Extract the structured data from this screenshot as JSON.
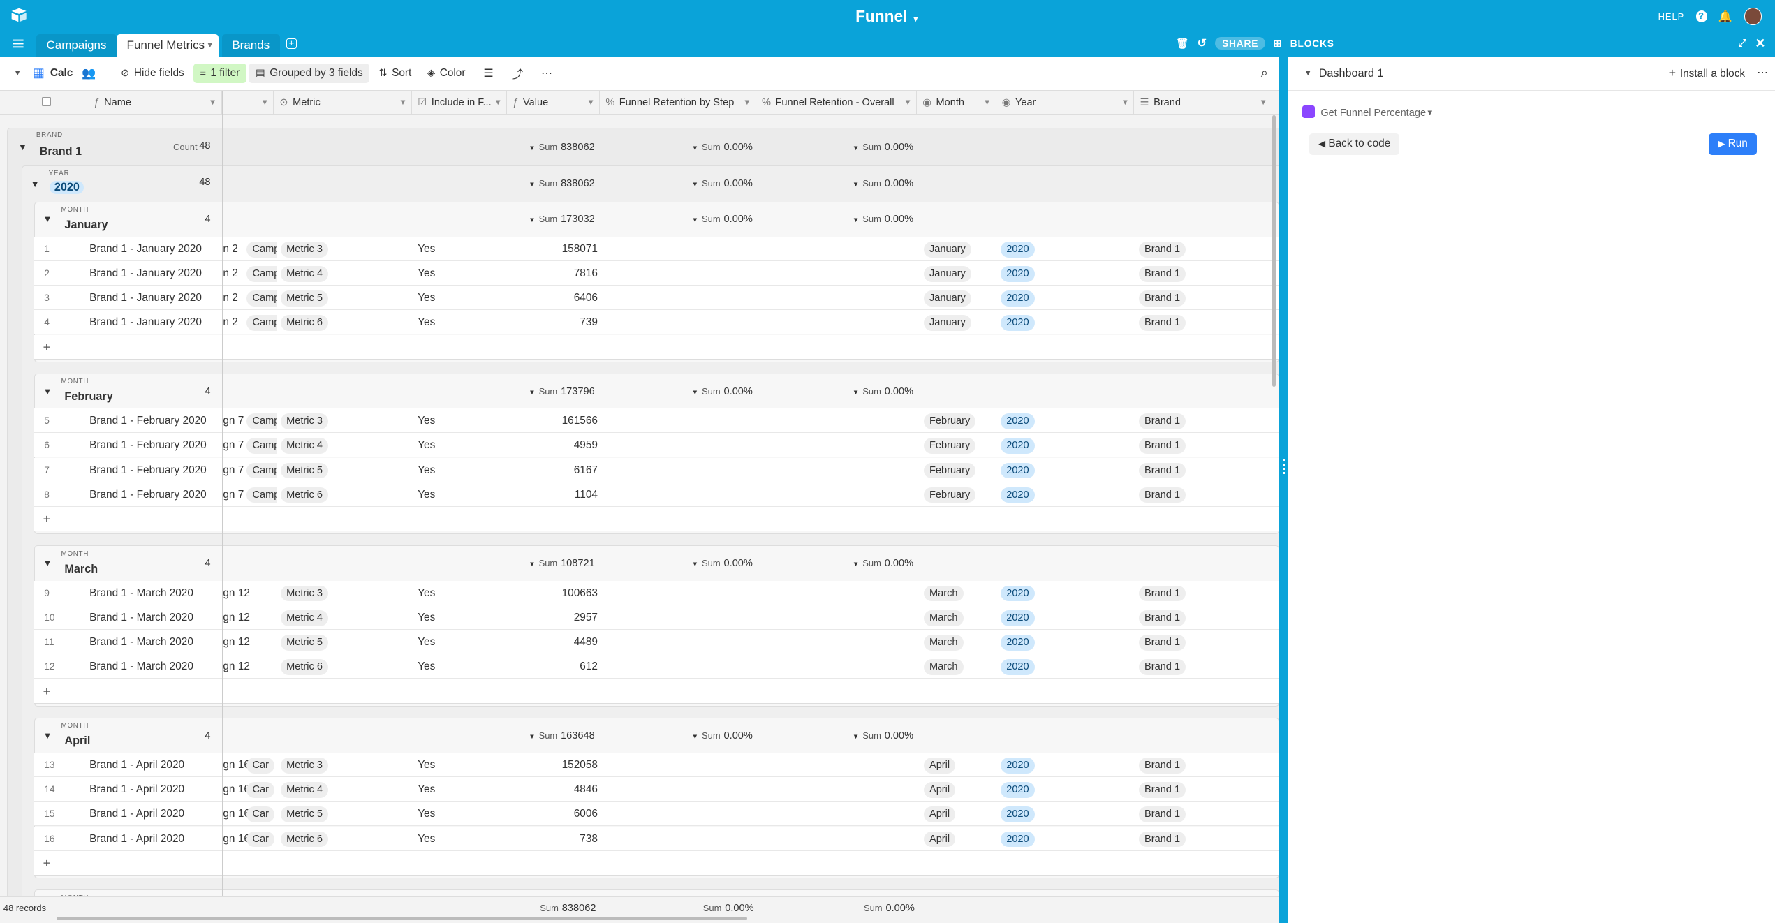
{
  "base_title": "Funnel",
  "top_right": {
    "help": "HELP"
  },
  "tabs": [
    {
      "label": "Campaigns"
    },
    {
      "label": "Funnel Metrics"
    },
    {
      "label": "Brands"
    }
  ],
  "tabbar_right": {
    "share": "SHARE",
    "blocks": "BLOCKS"
  },
  "viewbar": {
    "view_name": "Calc",
    "hide_fields": "Hide fields",
    "filter": "1 filter",
    "grouped": "Grouped by 3 fields",
    "sort": "Sort",
    "color": "Color"
  },
  "columns": [
    "Name",
    "Metric",
    "Include in F...",
    "Value",
    "Funnel Retention by Step",
    "Funnel Retention - Overall",
    "Month",
    "Year",
    "Brand"
  ],
  "group_brand": {
    "label": "BRAND",
    "value": "Brand 1",
    "count_label": "Count",
    "count": "48",
    "sum_value": "838062",
    "sum_step": "0.00%",
    "sum_overall": "0.00%"
  },
  "group_year": {
    "label": "YEAR",
    "value": "2020",
    "count": "48",
    "sum_value": "838062",
    "sum_step": "0.00%",
    "sum_overall": "0.00%"
  },
  "sum_label": "Sum",
  "month_label": "MONTH",
  "months": [
    {
      "name": "January",
      "count": "4",
      "sum_value": "173032",
      "sum_step": "0.00%",
      "sum_overall": "0.00%",
      "rows": [
        {
          "n": "1",
          "name": "Brand 1 - January 2020",
          "camp": "n 2",
          "camp2": "Campa",
          "metric": "Metric 3",
          "inc": "Yes",
          "value": "158071",
          "month": "January",
          "year": "2020",
          "brand": "Brand 1"
        },
        {
          "n": "2",
          "name": "Brand 1 - January 2020",
          "camp": "n 2",
          "camp2": "Campa",
          "metric": "Metric 4",
          "inc": "Yes",
          "value": "7816",
          "month": "January",
          "year": "2020",
          "brand": "Brand 1"
        },
        {
          "n": "3",
          "name": "Brand 1 - January 2020",
          "camp": "n 2",
          "camp2": "Campa",
          "metric": "Metric 5",
          "inc": "Yes",
          "value": "6406",
          "month": "January",
          "year": "2020",
          "brand": "Brand 1"
        },
        {
          "n": "4",
          "name": "Brand 1 - January 2020",
          "camp": "n 2",
          "camp2": "Campa",
          "metric": "Metric 6",
          "inc": "Yes",
          "value": "739",
          "month": "January",
          "year": "2020",
          "brand": "Brand 1"
        }
      ]
    },
    {
      "name": "February",
      "count": "4",
      "sum_value": "173796",
      "sum_step": "0.00%",
      "sum_overall": "0.00%",
      "rows": [
        {
          "n": "5",
          "name": "Brand 1 - February 2020",
          "camp": "gn 7",
          "camp2": "Campa",
          "metric": "Metric 3",
          "inc": "Yes",
          "value": "161566",
          "month": "February",
          "year": "2020",
          "brand": "Brand 1"
        },
        {
          "n": "6",
          "name": "Brand 1 - February 2020",
          "camp": "gn 7",
          "camp2": "Campa",
          "metric": "Metric 4",
          "inc": "Yes",
          "value": "4959",
          "month": "February",
          "year": "2020",
          "brand": "Brand 1"
        },
        {
          "n": "7",
          "name": "Brand 1 - February 2020",
          "camp": "gn 7",
          "camp2": "Campa",
          "metric": "Metric 5",
          "inc": "Yes",
          "value": "6167",
          "month": "February",
          "year": "2020",
          "brand": "Brand 1"
        },
        {
          "n": "8",
          "name": "Brand 1 - February 2020",
          "camp": "gn 7",
          "camp2": "Campa",
          "metric": "Metric 6",
          "inc": "Yes",
          "value": "1104",
          "month": "February",
          "year": "2020",
          "brand": "Brand 1"
        }
      ]
    },
    {
      "name": "March",
      "count": "4",
      "sum_value": "108721",
      "sum_step": "0.00%",
      "sum_overall": "0.00%",
      "rows": [
        {
          "n": "9",
          "name": "Brand 1 - March 2020",
          "camp": "gn 12",
          "camp2": "",
          "metric": "Metric 3",
          "inc": "Yes",
          "value": "100663",
          "month": "March",
          "year": "2020",
          "brand": "Brand 1"
        },
        {
          "n": "10",
          "name": "Brand 1 - March 2020",
          "camp": "gn 12",
          "camp2": "",
          "metric": "Metric 4",
          "inc": "Yes",
          "value": "2957",
          "month": "March",
          "year": "2020",
          "brand": "Brand 1"
        },
        {
          "n": "11",
          "name": "Brand 1 - March 2020",
          "camp": "gn 12",
          "camp2": "",
          "metric": "Metric 5",
          "inc": "Yes",
          "value": "4489",
          "month": "March",
          "year": "2020",
          "brand": "Brand 1"
        },
        {
          "n": "12",
          "name": "Brand 1 - March 2020",
          "camp": "gn 12",
          "camp2": "",
          "metric": "Metric 6",
          "inc": "Yes",
          "value": "612",
          "month": "March",
          "year": "2020",
          "brand": "Brand 1"
        }
      ]
    },
    {
      "name": "April",
      "count": "4",
      "sum_value": "163648",
      "sum_step": "0.00%",
      "sum_overall": "0.00%",
      "rows": [
        {
          "n": "13",
          "name": "Brand 1 - April 2020",
          "camp": "gn 16",
          "camp2": "Car",
          "metric": "Metric 3",
          "inc": "Yes",
          "value": "152058",
          "month": "April",
          "year": "2020",
          "brand": "Brand 1"
        },
        {
          "n": "14",
          "name": "Brand 1 - April 2020",
          "camp": "gn 16",
          "camp2": "Car",
          "metric": "Metric 4",
          "inc": "Yes",
          "value": "4846",
          "month": "April",
          "year": "2020",
          "brand": "Brand 1"
        },
        {
          "n": "15",
          "name": "Brand 1 - April 2020",
          "camp": "gn 16",
          "camp2": "Car",
          "metric": "Metric 5",
          "inc": "Yes",
          "value": "6006",
          "month": "April",
          "year": "2020",
          "brand": "Brand 1"
        },
        {
          "n": "16",
          "name": "Brand 1 - April 2020",
          "camp": "gn 16",
          "camp2": "Car",
          "metric": "Metric 6",
          "inc": "Yes",
          "value": "738",
          "month": "April",
          "year": "2020",
          "brand": "Brand 1"
        }
      ]
    }
  ],
  "footer": {
    "records": "48 records",
    "sum_value": "838062",
    "sum_step": "0.00%",
    "sum_overall": "0.00%"
  },
  "panel": {
    "dashboard": "Dashboard 1",
    "install": "Install a block",
    "block_name": "Get Funnel Percentage",
    "back": "Back to code",
    "run": "Run"
  },
  "colors": {
    "brand_bar": "#0aa3d9",
    "run": "#2d7ff9"
  }
}
